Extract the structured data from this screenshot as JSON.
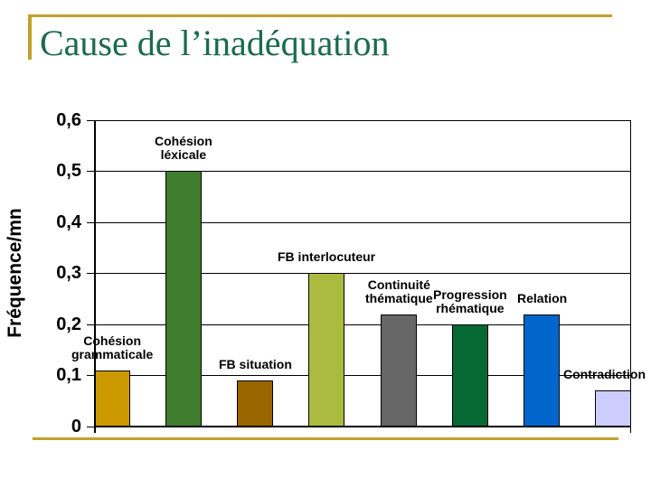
{
  "slide": {
    "title": "Cause de l’inadéquation"
  },
  "colors": {
    "accent_gold": "#C1A12B",
    "title_green": "#1A6B4D",
    "axis_black": "#000000",
    "plot_background": "#FFFFFF"
  },
  "chart_data": {
    "type": "bar",
    "title": "",
    "xlabel": "",
    "ylabel": "Fréquence/mn",
    "ylim": [
      0,
      0.6
    ],
    "ytick_step": 0.1,
    "ytick_labels": [
      "0",
      "0,1",
      "0,2",
      "0,3",
      "0,4",
      "0,5",
      "0,6"
    ],
    "decimal_separator": ",",
    "grid": true,
    "legend": false,
    "categories": [
      "Cohésion grammaticale",
      "Cohésion léxicale",
      "FB situation",
      "FB interlocuteur",
      "Continuité thématique",
      "Progression rhématique",
      "Relation",
      "Contradiction"
    ],
    "category_label_lines": [
      [
        "Cohésion",
        "grammaticale"
      ],
      [
        "Cohésion",
        "léxicale"
      ],
      [
        "FB situation"
      ],
      [
        "FB interlocuteur"
      ],
      [
        "Continuité",
        "thématique"
      ],
      [
        "Progression",
        "rhématique"
      ],
      [
        "Relation"
      ],
      [
        "Contradiction"
      ]
    ],
    "values": [
      0.11,
      0.5,
      0.09,
      0.3,
      0.22,
      0.2,
      0.22,
      0.07
    ],
    "bar_colors": [
      "#CC9900",
      "#3E7E2E",
      "#996600",
      "#ABBB40",
      "#666666",
      "#066833",
      "#0066CC",
      "#CCCCFF"
    ]
  }
}
